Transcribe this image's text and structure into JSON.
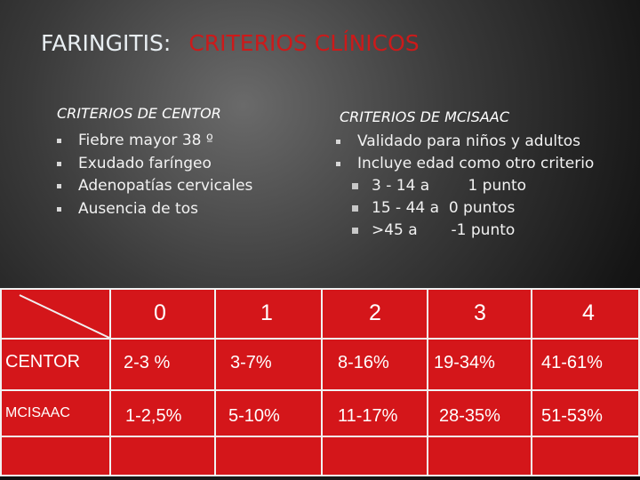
{
  "title": {
    "part1": "FARINGITIS:",
    "part2": "CRITERIOS CLÍNICOS"
  },
  "centor": {
    "heading": "CRITERIOS DE CENTOR",
    "items": [
      "Fiebre mayor 38 º",
      "Exudado faríngeo",
      "Adenopatías cervicales",
      "Ausencia de tos"
    ]
  },
  "mcisaac": {
    "heading": "CRITERIOS DE MCISAAC",
    "items": [
      "Validado para niños y adultos",
      "Incluye  edad como otro criterio"
    ],
    "subitems": [
      "3 - 14 a        1 punto",
      "15 - 44 a  0 puntos",
      ">45 a       -1 punto"
    ]
  },
  "table": {
    "headers": [
      "0",
      "1",
      "2",
      "3",
      "4"
    ],
    "rows": [
      {
        "label": "CENTOR",
        "values": [
          "2-3 %",
          "3-7%",
          "8-16%",
          "19-34%",
          "41-61%"
        ]
      },
      {
        "label": "MCISAAC",
        "values": [
          "1-2,5%",
          "5-10%",
          "11-17%",
          "28-35%",
          "51-53%"
        ]
      }
    ]
  },
  "colors": {
    "accent_red": "#cc1a1a",
    "table_bg": "#d4161a"
  }
}
